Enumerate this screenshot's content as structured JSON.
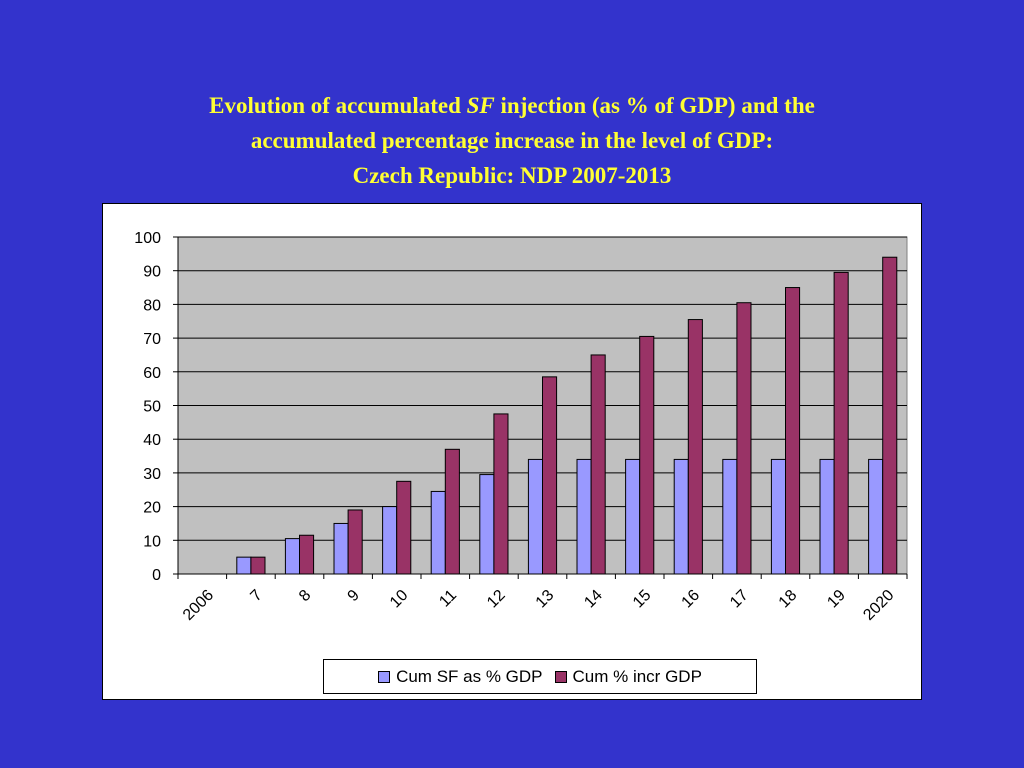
{
  "title": {
    "line1_pre": "Evolution of accumulated ",
    "line1_italic": "SF",
    "line1_post": " injection (as % of GDP) and the",
    "line2": "accumulated percentage increase in the level of GDP:",
    "line3": "Czech Republic: NDP 2007-2013"
  },
  "colors": {
    "background": "#3333cc",
    "title": "#ffff33",
    "plot_area": "#c0c0c0",
    "series1": "#9999ff",
    "series2": "#993366"
  },
  "chart_data": {
    "type": "bar",
    "categories": [
      "2006",
      "7",
      "8",
      "9",
      "10",
      "11",
      "12",
      "13",
      "14",
      "15",
      "16",
      "17",
      "18",
      "19",
      "2020"
    ],
    "series": [
      {
        "name": "Cum SF as % GDP",
        "values": [
          0,
          5,
          10.5,
          15,
          20,
          24.5,
          29.5,
          34,
          34,
          34,
          34,
          34,
          34,
          34,
          34
        ]
      },
      {
        "name": "Cum % incr GDP",
        "values": [
          0,
          5,
          11.5,
          19,
          27.5,
          37,
          47.5,
          58.5,
          65,
          70.5,
          75.5,
          80.5,
          85,
          89.5,
          94
        ]
      }
    ],
    "ylim": [
      0,
      100
    ],
    "yticks": [
      "0",
      "10",
      "20",
      "30",
      "40",
      "50",
      "60",
      "70",
      "80",
      "90",
      "100"
    ],
    "grid": true,
    "legend_position": "bottom"
  }
}
